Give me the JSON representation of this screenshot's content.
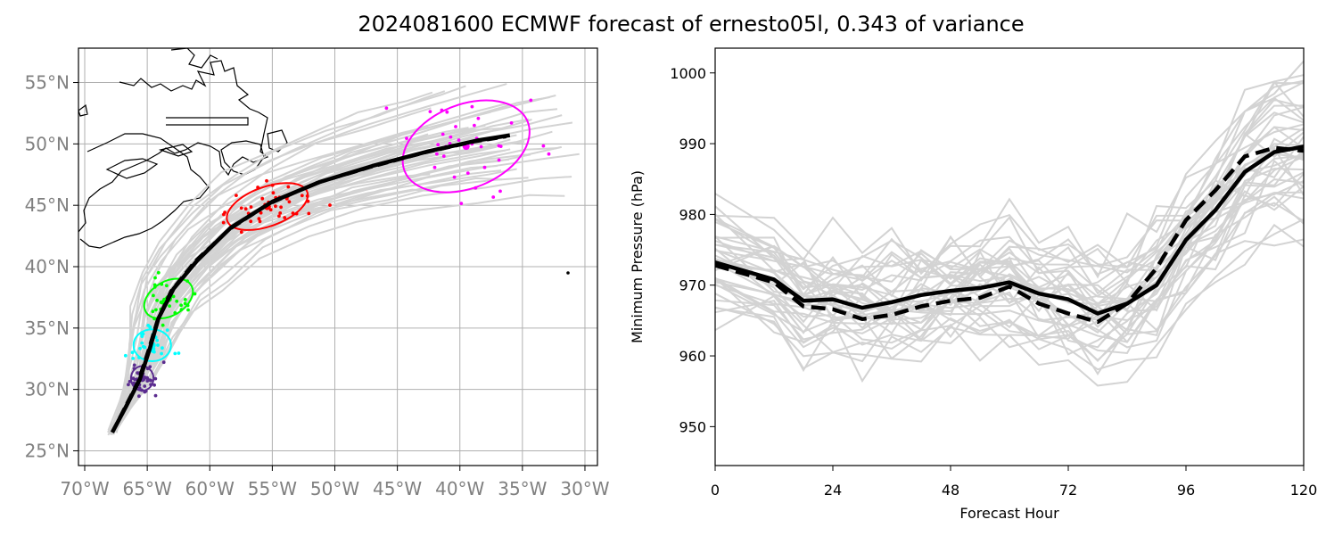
{
  "figure": {
    "title": "2024081600 ECMWF forecast of ernesto05l, 0.343 of variance"
  },
  "colors": {
    "ensemble": "#d3d3d3",
    "mean": "#000000",
    "coast": "#000000",
    "grid": "#b0b0b0",
    "map_tick_text": "#808080",
    "cluster_purple": "#5b2c8f",
    "cluster_cyan": "#00ffff",
    "cluster_green": "#00ff00",
    "cluster_red": "#ff0000",
    "cluster_magenta": "#ff00ff"
  },
  "map": {
    "lon_range": [
      -70.5,
      -29
    ],
    "lat_range": [
      23.8,
      57.8
    ],
    "lon_ticks": [
      -70,
      -65,
      -60,
      -55,
      -50,
      -45,
      -40,
      -35,
      -30
    ],
    "lon_tick_labels": [
      "70°W",
      "65°W",
      "60°W",
      "55°W",
      "50°W",
      "45°W",
      "40°W",
      "35°W",
      "30°W"
    ],
    "lat_ticks": [
      25,
      30,
      35,
      40,
      45,
      50,
      55
    ],
    "lat_tick_labels": [
      "25°N",
      "30°N",
      "35°N",
      "40°N",
      "45°N",
      "50°N",
      "55°N"
    ],
    "mean_track": [
      [
        -67.8,
        26.5
      ],
      [
        -66.7,
        28.6
      ],
      [
        -65.6,
        30.8
      ],
      [
        -64.8,
        33.3
      ],
      [
        -64.1,
        35.8
      ],
      [
        -62.9,
        38.2
      ],
      [
        -61.0,
        40.5
      ],
      [
        -58.3,
        43.2
      ],
      [
        -55.0,
        45.3
      ],
      [
        -51.2,
        46.9
      ],
      [
        -47.0,
        48.2
      ],
      [
        -42.5,
        49.4
      ],
      [
        -38.5,
        50.3
      ],
      [
        -36.0,
        50.7
      ]
    ],
    "mean_track_dashed": [
      [
        -67.8,
        26.5
      ],
      [
        -66.8,
        28.5
      ],
      [
        -65.7,
        30.7
      ],
      [
        -64.9,
        33.2
      ],
      [
        -64.2,
        35.6
      ],
      [
        -63.1,
        38.0
      ],
      [
        -61.2,
        40.4
      ],
      [
        -58.5,
        43.0
      ],
      [
        -55.3,
        45.1
      ],
      [
        -51.5,
        46.8
      ],
      [
        -47.2,
        48.1
      ],
      [
        -42.8,
        49.3
      ],
      [
        -38.8,
        50.2
      ],
      [
        -36.3,
        50.6
      ]
    ],
    "clusters": [
      {
        "color": "#5b2c8f",
        "center": [
          -65.4,
          30.9
        ],
        "ellipse": {
          "rx": 0.9,
          "ry": 1.0,
          "angle": 0
        },
        "spread": [
          0.6,
          0.7
        ],
        "n": 40
      },
      {
        "color": "#00ffff",
        "center": [
          -64.6,
          33.6
        ],
        "ellipse": {
          "rx": 1.5,
          "ry": 1.3,
          "angle": 0
        },
        "spread": [
          0.8,
          0.8
        ],
        "n": 30
      },
      {
        "color": "#00ff00",
        "center": [
          -63.3,
          37.4
        ],
        "ellipse": {
          "rx": 2.1,
          "ry": 1.4,
          "angle": 30
        },
        "spread": [
          1.1,
          0.9
        ],
        "n": 30
      },
      {
        "color": "#ff0000",
        "center": [
          -55.4,
          44.9
        ],
        "ellipse": {
          "rx": 3.4,
          "ry": 1.6,
          "angle": 20
        },
        "spread": [
          2.0,
          0.9
        ],
        "n": 40
      },
      {
        "color": "#ff00ff",
        "center": [
          -39.5,
          49.8
        ],
        "ellipse": {
          "rx": 5.3,
          "ry": 3.4,
          "angle": 22
        },
        "spread": [
          3.0,
          2.0
        ],
        "n": 35
      }
    ]
  },
  "chart_data": {
    "type": "line",
    "title": "2024081600 ECMWF forecast of ernesto05l, 0.343 of variance",
    "xlabel": "Forecast Hour",
    "ylabel": "Minimum Pressure (hPa)",
    "xlim": [
      0,
      120
    ],
    "ylim": [
      944.5,
      1003.5
    ],
    "xticks": [
      0,
      24,
      48,
      72,
      96,
      120
    ],
    "yticks": [
      950,
      960,
      970,
      980,
      990,
      1000
    ],
    "x": [
      0,
      12,
      18,
      24,
      30,
      36,
      42,
      48,
      54,
      60,
      66,
      72,
      78,
      84,
      90,
      96,
      102,
      108,
      114,
      120
    ],
    "series": [
      {
        "style": "solid-black",
        "values": [
          973.2,
          970.8,
          967.8,
          968.0,
          966.8,
          967.6,
          968.6,
          969.2,
          969.6,
          970.4,
          968.8,
          968.0,
          966.0,
          967.4,
          970.0,
          976.4,
          980.6,
          986.0,
          988.8,
          989.6
        ]
      },
      {
        "style": "dashed-black",
        "values": [
          972.8,
          970.4,
          967.0,
          966.6,
          965.2,
          965.8,
          967.0,
          967.8,
          968.2,
          969.8,
          967.4,
          966.0,
          964.8,
          967.4,
          972.4,
          979.2,
          983.4,
          988.2,
          989.4,
          989.0
        ]
      }
    ],
    "ensemble_count": 40
  }
}
